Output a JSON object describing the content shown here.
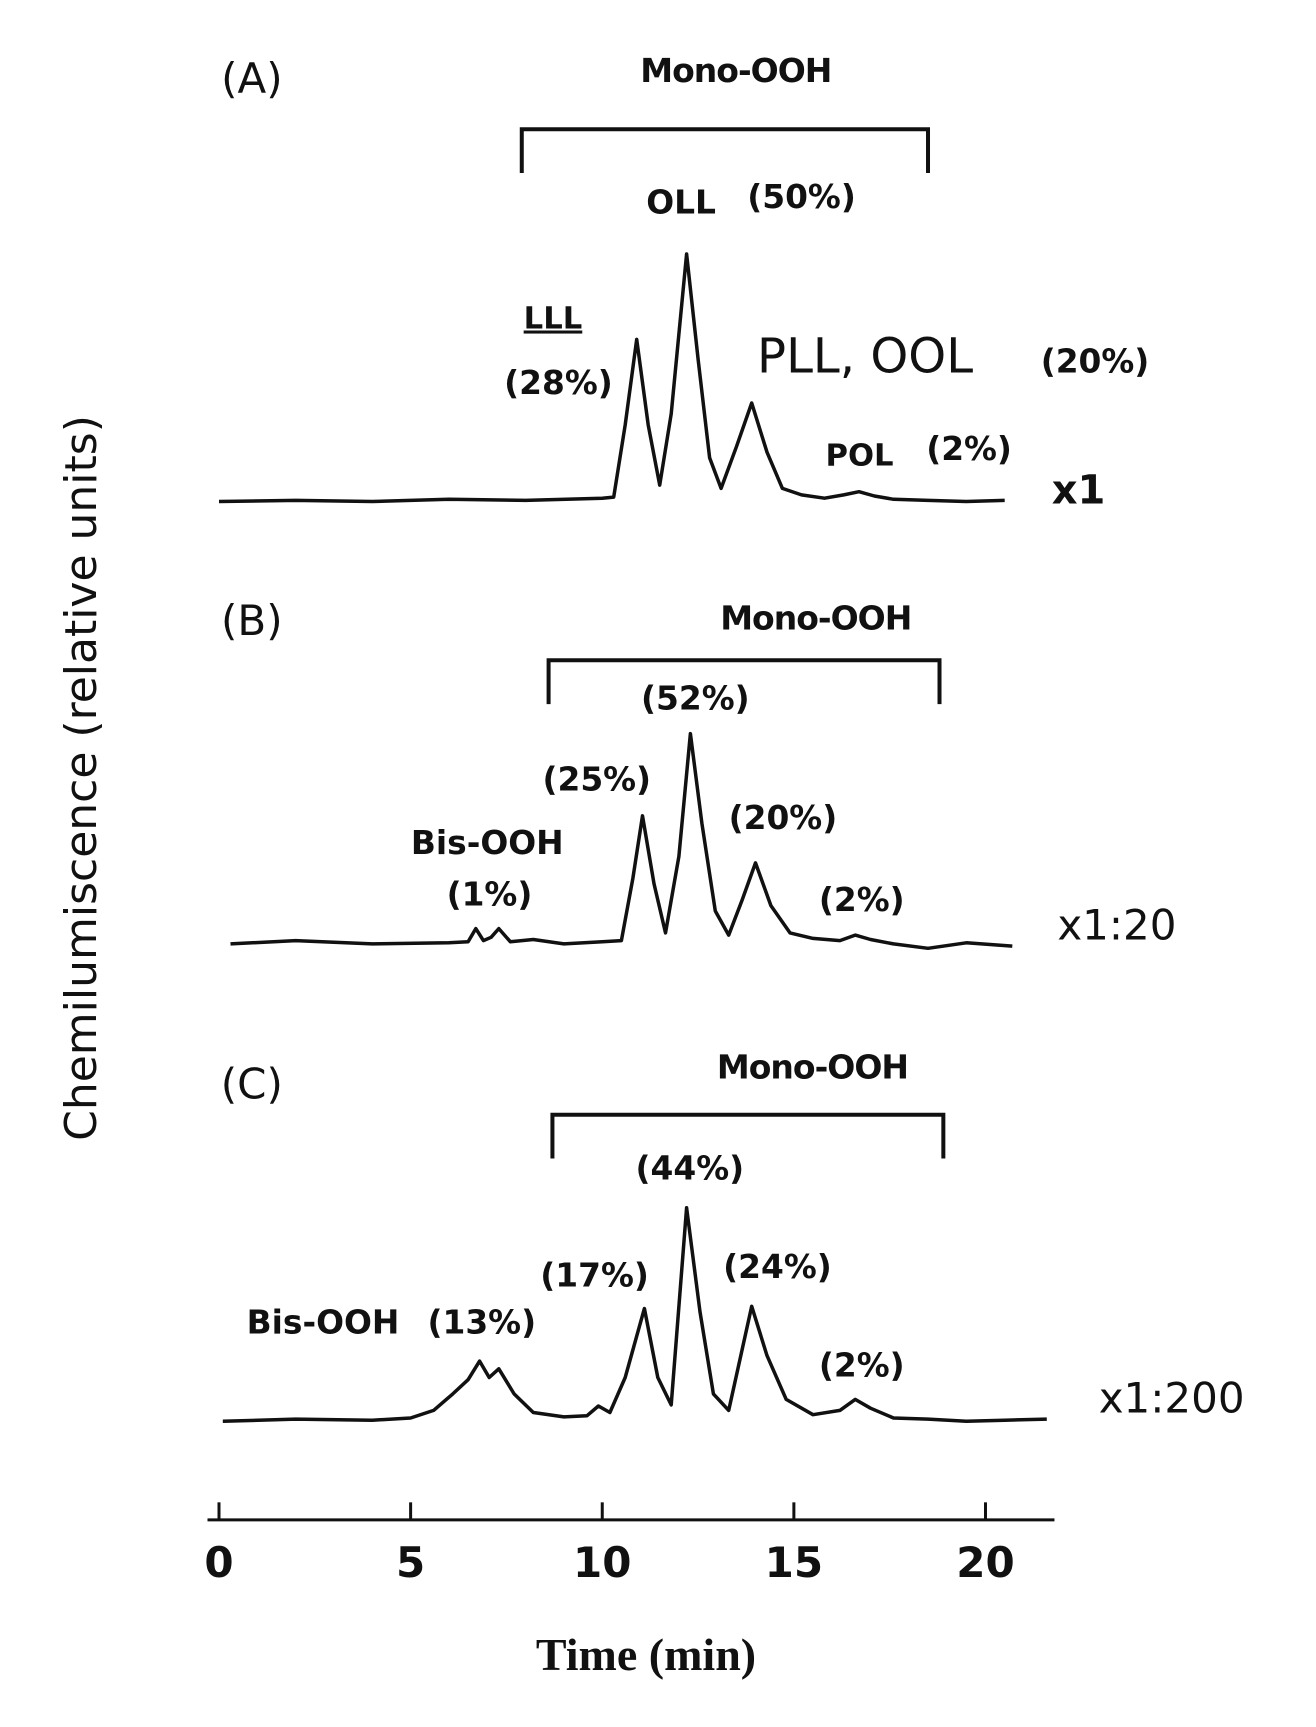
{
  "chart_data": {
    "type": "line",
    "xlabel": "Time (min)",
    "ylabel": "Chemilumiscence (relative units)",
    "xlim": [
      -0.3,
      21.8
    ],
    "xticks": [
      0,
      5,
      10,
      15,
      20
    ],
    "color": "#111111",
    "panels": [
      {
        "label": "(A)",
        "bracket_label": "Mono-OOH",
        "bracket": [
          7.9,
          18.5
        ],
        "scale_label": "x1",
        "ylim": [
          0,
          240
        ],
        "annotations": [
          "OLL",
          "(50%)",
          "LLL",
          "(28%)",
          "PLL, OOL",
          "(20%)",
          "POL",
          "(2%)"
        ],
        "x": [
          0,
          2,
          4,
          6,
          8,
          10,
          10.3,
          10.6,
          10.9,
          11.2,
          11.5,
          11.8,
          12.2,
          12.5,
          12.8,
          13.1,
          13.5,
          13.9,
          14.3,
          14.7,
          15.2,
          15.8,
          16.3,
          16.7,
          17.1,
          17.6,
          18.5,
          19.5,
          20.5
        ],
        "values": [
          0,
          1,
          0,
          2,
          1,
          3,
          4,
          70,
          148,
          70,
          15,
          80,
          226,
          130,
          40,
          12,
          50,
          90,
          45,
          12,
          6,
          3,
          6,
          9,
          5,
          2,
          1,
          0,
          1
        ]
      },
      {
        "label": "(B)",
        "bracket_label": "Mono-OOH",
        "bracket": [
          8.6,
          18.8
        ],
        "scale_label": "x1:20",
        "ylim": [
          0,
          240
        ],
        "annotations": [
          "(52%)",
          "(25%)",
          "(20%)",
          "Bis-OOH",
          "(1%)",
          "(2%)"
        ],
        "x": [
          0.3,
          2,
          4,
          6,
          6.5,
          6.7,
          6.9,
          7.1,
          7.3,
          7.6,
          8.2,
          9,
          10,
          10.5,
          10.8,
          11.05,
          11.35,
          11.65,
          12.0,
          12.3,
          12.6,
          12.95,
          13.3,
          13.65,
          14.0,
          14.4,
          14.9,
          15.5,
          16.2,
          16.6,
          17.0,
          17.6,
          18.5,
          19.5,
          20.7
        ],
        "values": [
          0,
          3,
          0,
          1,
          2,
          14,
          3,
          6,
          14,
          2,
          4,
          0,
          2,
          3,
          60,
          117,
          55,
          10,
          80,
          192,
          110,
          30,
          8,
          40,
          74,
          35,
          10,
          5,
          3,
          8,
          4,
          0,
          -4,
          1,
          -2
        ]
      },
      {
        "label": "(C)",
        "bracket_label": "Mono-OOH",
        "bracket": [
          8.7,
          18.9
        ],
        "scale_label": "x1:200",
        "ylim": [
          0,
          240
        ],
        "annotations": [
          "(44%)",
          "(17%)",
          "(24%)",
          "Bis-OOH",
          "(13%)",
          "(2%)"
        ],
        "x": [
          0.1,
          2,
          4,
          5,
          5.6,
          6.1,
          6.5,
          6.8,
          7.05,
          7.3,
          7.7,
          8.2,
          9,
          9.6,
          9.9,
          10.2,
          10.6,
          11.1,
          11.45,
          11.8,
          12.2,
          12.55,
          12.9,
          13.3,
          13.9,
          14.3,
          14.8,
          15.5,
          16.2,
          16.6,
          17.0,
          17.6,
          18.5,
          19.5,
          20.5,
          21.6
        ],
        "values": [
          0,
          2,
          1,
          3,
          10,
          25,
          38,
          55,
          40,
          48,
          25,
          8,
          4,
          5,
          14,
          8,
          40,
          103,
          40,
          15,
          195,
          100,
          25,
          10,
          105,
          60,
          20,
          6,
          10,
          20,
          12,
          3,
          2,
          0,
          1,
          2
        ]
      }
    ]
  }
}
